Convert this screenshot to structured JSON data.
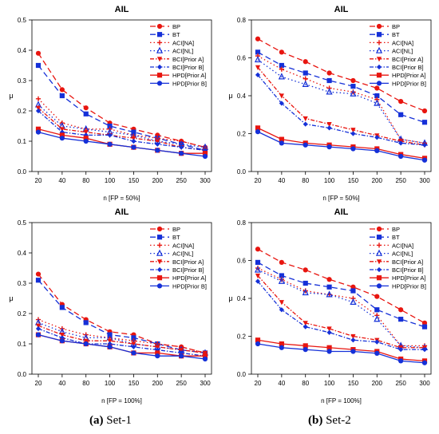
{
  "styles": {
    "BP": {
      "color": "#e8150f",
      "dash": "7,4",
      "marker": "circle"
    },
    "BT": {
      "color": "#1530d8",
      "dash": "7,4",
      "marker": "square"
    },
    "ACI[NA]": {
      "color": "#e8150f",
      "dash": "1.5,3",
      "marker": "plus"
    },
    "ACI[NL]": {
      "color": "#1530d8",
      "dash": "1.5,3",
      "marker": "triangle"
    },
    "BCI[Prior A]": {
      "color": "#e8150f",
      "dash": "5,2,1.5,2",
      "marker": "tridown"
    },
    "BCI[Prior B]": {
      "color": "#1530d8",
      "dash": "5,2,1.5,2",
      "marker": "diamond"
    },
    "HPD[Prior A]": {
      "color": "#e8150f",
      "dash": "none",
      "marker": "square"
    },
    "HPD[Prior B]": {
      "color": "#1530d8",
      "dash": "none",
      "marker": "circle"
    }
  },
  "captions": {
    "a": {
      "label": "(a)",
      "text": " Set-1"
    },
    "b": {
      "label": "(b)",
      "text": " Set-2"
    }
  },
  "chart_data": [
    {
      "type": "line",
      "title": "AIL",
      "xlabel": "n [FP = 50%]",
      "ylabel": "μ",
      "categories": [
        "20",
        "40",
        "80",
        "100",
        "150",
        "200",
        "250",
        "300"
      ],
      "ylim": [
        0,
        0.5
      ],
      "yticks": [
        0.0,
        0.1,
        0.2,
        0.3,
        0.4,
        0.5
      ],
      "legend": "top-right",
      "series": [
        {
          "name": "BP",
          "values": [
            0.39,
            0.27,
            0.21,
            0.16,
            0.14,
            0.12,
            0.1,
            0.08
          ]
        },
        {
          "name": "BT",
          "values": [
            0.35,
            0.25,
            0.19,
            0.15,
            0.13,
            0.11,
            0.09,
            0.07
          ]
        },
        {
          "name": "ACI[NA]",
          "values": [
            0.24,
            0.16,
            0.14,
            0.14,
            0.12,
            0.11,
            0.1,
            0.08
          ]
        },
        {
          "name": "ACI[NL]",
          "values": [
            0.22,
            0.15,
            0.14,
            0.13,
            0.12,
            0.1,
            0.09,
            0.08
          ]
        },
        {
          "name": "BCI[Prior A]",
          "values": [
            0.21,
            0.14,
            0.13,
            0.12,
            0.11,
            0.1,
            0.08,
            0.07
          ]
        },
        {
          "name": "BCI[Prior B]",
          "values": [
            0.2,
            0.13,
            0.12,
            0.12,
            0.1,
            0.09,
            0.08,
            0.07
          ]
        },
        {
          "name": "HPD[Prior A]",
          "values": [
            0.14,
            0.12,
            0.11,
            0.09,
            0.08,
            0.07,
            0.06,
            0.06
          ]
        },
        {
          "name": "HPD[Prior B]",
          "values": [
            0.13,
            0.11,
            0.1,
            0.09,
            0.08,
            0.07,
            0.06,
            0.05
          ]
        }
      ]
    },
    {
      "type": "line",
      "title": "AIL",
      "xlabel": "n [FP = 50%]",
      "ylabel": "μ",
      "categories": [
        "20",
        "40",
        "80",
        "100",
        "150",
        "200",
        "250",
        "300"
      ],
      "ylim": [
        0,
        0.8
      ],
      "yticks": [
        0.0,
        0.2,
        0.4,
        0.6,
        0.8
      ],
      "legend": "top-right",
      "series": [
        {
          "name": "BP",
          "values": [
            0.7,
            0.63,
            0.58,
            0.52,
            0.48,
            0.44,
            0.37,
            0.32
          ]
        },
        {
          "name": "BT",
          "values": [
            0.63,
            0.56,
            0.52,
            0.48,
            0.45,
            0.4,
            0.3,
            0.26
          ]
        },
        {
          "name": "ACI[NA]",
          "values": [
            0.61,
            0.54,
            0.49,
            0.44,
            0.42,
            0.38,
            0.17,
            0.15
          ]
        },
        {
          "name": "ACI[NL]",
          "values": [
            0.59,
            0.5,
            0.46,
            0.42,
            0.41,
            0.36,
            0.17,
            0.15
          ]
        },
        {
          "name": "BCI[Prior A]",
          "values": [
            0.55,
            0.4,
            0.28,
            0.25,
            0.22,
            0.19,
            0.16,
            0.14
          ]
        },
        {
          "name": "BCI[Prior B]",
          "values": [
            0.51,
            0.36,
            0.25,
            0.23,
            0.2,
            0.18,
            0.15,
            0.14
          ]
        },
        {
          "name": "HPD[Prior A]",
          "values": [
            0.23,
            0.17,
            0.15,
            0.14,
            0.13,
            0.12,
            0.09,
            0.07
          ]
        },
        {
          "name": "HPD[Prior B]",
          "values": [
            0.21,
            0.15,
            0.14,
            0.13,
            0.12,
            0.11,
            0.08,
            0.06
          ]
        }
      ]
    },
    {
      "type": "line",
      "title": "AIL",
      "xlabel": "n [FP = 100%]",
      "ylabel": "μ",
      "categories": [
        "20",
        "40",
        "80",
        "100",
        "150",
        "200",
        "250",
        "300"
      ],
      "ylim": [
        0,
        0.5
      ],
      "yticks": [
        0.0,
        0.1,
        0.2,
        0.3,
        0.4,
        0.5
      ],
      "legend": "top-right",
      "series": [
        {
          "name": "BP",
          "values": [
            0.33,
            0.23,
            0.18,
            0.14,
            0.13,
            0.1,
            0.09,
            0.07
          ]
        },
        {
          "name": "BT",
          "values": [
            0.31,
            0.22,
            0.17,
            0.13,
            0.12,
            0.1,
            0.08,
            0.07
          ]
        },
        {
          "name": "ACI[NA]",
          "values": [
            0.18,
            0.15,
            0.13,
            0.12,
            0.11,
            0.1,
            0.09,
            0.07
          ]
        },
        {
          "name": "ACI[NL]",
          "values": [
            0.17,
            0.14,
            0.12,
            0.12,
            0.1,
            0.09,
            0.08,
            0.07
          ]
        },
        {
          "name": "BCI[Prior A]",
          "values": [
            0.16,
            0.13,
            0.11,
            0.11,
            0.1,
            0.09,
            0.08,
            0.07
          ]
        },
        {
          "name": "BCI[Prior B]",
          "values": [
            0.15,
            0.12,
            0.1,
            0.1,
            0.09,
            0.08,
            0.07,
            0.06
          ]
        },
        {
          "name": "HPD[Prior A]",
          "values": [
            0.13,
            0.11,
            0.1,
            0.09,
            0.07,
            0.07,
            0.06,
            0.06
          ]
        },
        {
          "name": "HPD[Prior B]",
          "values": [
            0.13,
            0.11,
            0.1,
            0.09,
            0.07,
            0.06,
            0.06,
            0.05
          ]
        }
      ]
    },
    {
      "type": "line",
      "title": "AIL",
      "xlabel": "n [FP = 100%]",
      "ylabel": "μ",
      "categories": [
        "20",
        "40",
        "80",
        "100",
        "150",
        "200",
        "250",
        "300"
      ],
      "ylim": [
        0,
        0.8
      ],
      "yticks": [
        0.0,
        0.2,
        0.4,
        0.6,
        0.8
      ],
      "legend": "top-right",
      "series": [
        {
          "name": "BP",
          "values": [
            0.66,
            0.59,
            0.55,
            0.5,
            0.46,
            0.41,
            0.34,
            0.27
          ]
        },
        {
          "name": "BT",
          "values": [
            0.59,
            0.52,
            0.48,
            0.46,
            0.44,
            0.34,
            0.29,
            0.25
          ]
        },
        {
          "name": "ACI[NA]",
          "values": [
            0.56,
            0.5,
            0.44,
            0.42,
            0.4,
            0.31,
            0.15,
            0.15
          ]
        },
        {
          "name": "ACI[NL]",
          "values": [
            0.55,
            0.49,
            0.43,
            0.42,
            0.38,
            0.29,
            0.15,
            0.14
          ]
        },
        {
          "name": "BCI[Prior A]",
          "values": [
            0.52,
            0.38,
            0.27,
            0.24,
            0.2,
            0.18,
            0.14,
            0.14
          ]
        },
        {
          "name": "BCI[Prior B]",
          "values": [
            0.49,
            0.34,
            0.25,
            0.22,
            0.18,
            0.17,
            0.13,
            0.13
          ]
        },
        {
          "name": "HPD[Prior A]",
          "values": [
            0.18,
            0.16,
            0.15,
            0.14,
            0.13,
            0.12,
            0.08,
            0.07
          ]
        },
        {
          "name": "HPD[Prior B]",
          "values": [
            0.16,
            0.14,
            0.13,
            0.12,
            0.12,
            0.11,
            0.07,
            0.06
          ]
        }
      ]
    }
  ]
}
